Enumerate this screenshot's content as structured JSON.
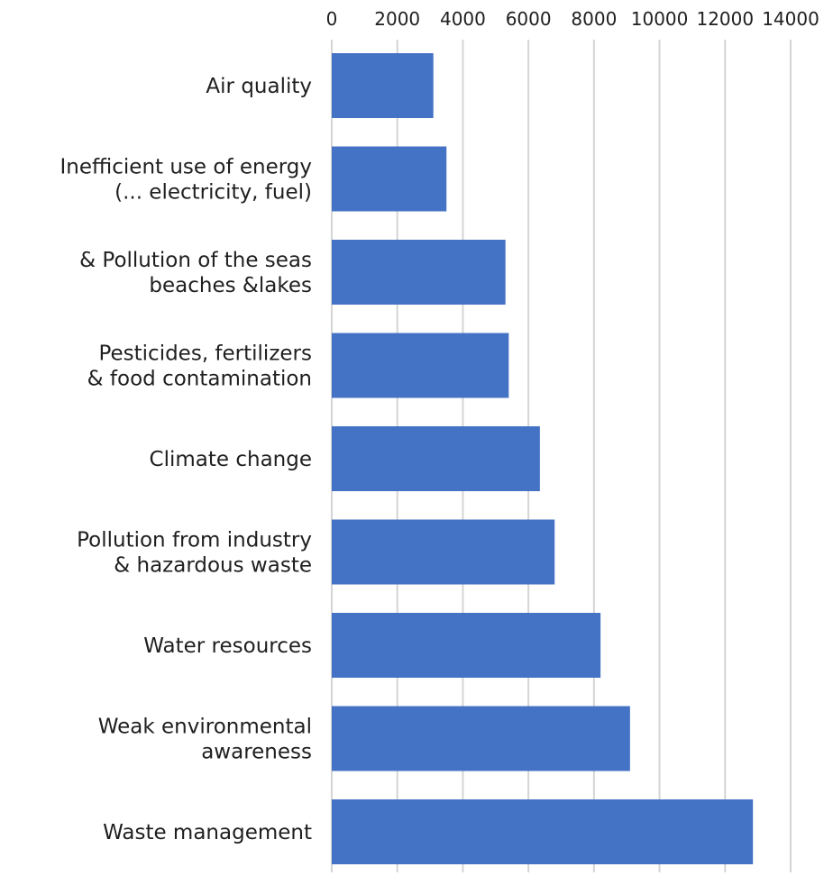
{
  "chart_data": {
    "type": "bar",
    "orientation": "horizontal",
    "title": "",
    "xlabel": "",
    "ylabel": "",
    "xlim": [
      0,
      14000
    ],
    "x_ticks": [
      0,
      2000,
      4000,
      6000,
      8000,
      10000,
      12000,
      14000
    ],
    "x_axis_position": "top",
    "grid": true,
    "legend": "none",
    "bar_color": "#4472C4",
    "gridline_color": "#D4D4D4",
    "categories": [
      [
        "Air quality"
      ],
      [
        "Inefficient use of energy",
        "(... electricity, fuel)"
      ],
      [
        "& Pollution of the seas",
        "beaches &lakes"
      ],
      [
        "Pesticides, fertilizers",
        "& food contamination"
      ],
      [
        "Climate change"
      ],
      [
        "Pollution from industry",
        "& hazardous waste"
      ],
      [
        "Water resources"
      ],
      [
        "Weak environmental",
        "awareness"
      ],
      [
        "Waste management"
      ]
    ],
    "values": [
      3100,
      3500,
      5300,
      5400,
      6350,
      6800,
      8200,
      9100,
      12850
    ]
  }
}
